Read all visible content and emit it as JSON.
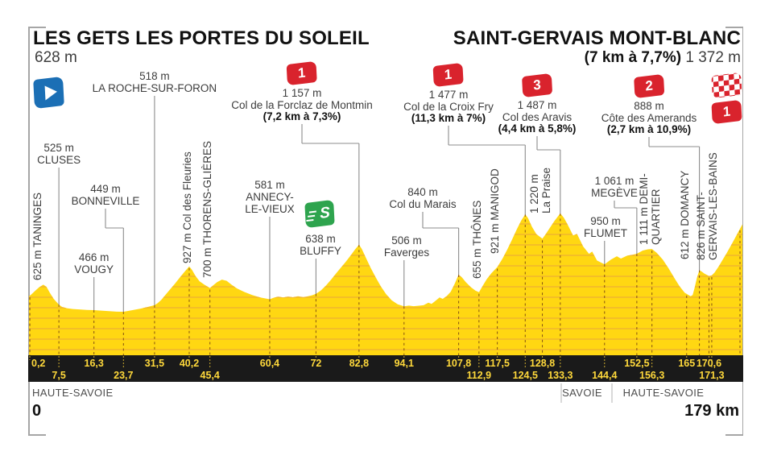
{
  "stage": {
    "start_name": "LES GETS LES PORTES DU SOLEIL",
    "start_altitude": "628 m",
    "finish_name": "SAINT-GERVAIS MONT-BLANC",
    "finish_climb_stats": "(7 km à 7,7%)",
    "finish_altitude": "1 372 m",
    "start_km_label": "0",
    "total_distance_label": "179 km"
  },
  "regions": [
    {
      "label": "HAUTE-SAVOIE",
      "x": 40,
      "align": "left"
    },
    {
      "label": "SAVOIE",
      "x": 723,
      "align": "center"
    },
    {
      "label": "HAUTE-SAVOIE",
      "x": 824,
      "align": "center"
    }
  ],
  "colors": {
    "yellow": "#ffd712",
    "stripe": "#e9a43c",
    "bar_black": "#1a1a1a",
    "km_text": "#ffd93b",
    "badge_red": "#d9232d",
    "sprint_green": "#2ea44e",
    "start_blue": "#1b6fb5",
    "text_dark": "#3d3d3d",
    "line_gray": "#8c8c8c",
    "dash_brown": "#6e3a12",
    "frame_gray": "#a6a6a6"
  },
  "chart_data": {
    "type": "area",
    "title": "LES GETS LES PORTES DU SOLEIL - SAINT-GERVAIS MONT-BLANC",
    "xlabel": "km",
    "x_range": [
      0,
      179
    ],
    "y_range_m": [
      449,
      1487
    ],
    "profile_km_alt": [
      [
        0,
        612
      ],
      [
        0.5,
        628
      ],
      [
        1.5,
        668
      ],
      [
        2.5,
        706
      ],
      [
        3.6,
        735
      ],
      [
        4.4,
        712
      ],
      [
        5.2,
        652
      ],
      [
        6.2,
        585
      ],
      [
        7.5,
        525
      ],
      [
        8.3,
        500
      ],
      [
        9.5,
        486
      ],
      [
        11,
        478
      ],
      [
        13,
        472
      ],
      [
        14.5,
        468
      ],
      [
        16.3,
        466
      ],
      [
        18.5,
        460
      ],
      [
        20.5,
        454
      ],
      [
        22,
        450
      ],
      [
        23.7,
        449
      ],
      [
        25,
        458
      ],
      [
        26.5,
        470
      ],
      [
        28,
        482
      ],
      [
        29.8,
        500
      ],
      [
        31.5,
        518
      ],
      [
        32.3,
        540
      ],
      [
        33.2,
        575
      ],
      [
        34.2,
        625
      ],
      [
        35.4,
        685
      ],
      [
        36.6,
        745
      ],
      [
        37.8,
        808
      ],
      [
        39,
        870
      ],
      [
        40.2,
        927
      ],
      [
        40.9,
        890
      ],
      [
        41.8,
        825
      ],
      [
        42.8,
        770
      ],
      [
        44,
        735
      ],
      [
        45.4,
        700
      ],
      [
        46.2,
        728
      ],
      [
        47.2,
        762
      ],
      [
        48.4,
        788
      ],
      [
        49.6,
        775
      ],
      [
        50.8,
        735
      ],
      [
        52.2,
        695
      ],
      [
        54,
        658
      ],
      [
        56,
        625
      ],
      [
        58,
        600
      ],
      [
        60.4,
        581
      ],
      [
        61.3,
        595
      ],
      [
        62.5,
        608
      ],
      [
        63.8,
        600
      ],
      [
        65,
        610
      ],
      [
        66.2,
        602
      ],
      [
        67.5,
        612
      ],
      [
        68.8,
        603
      ],
      [
        70,
        612
      ],
      [
        71,
        622
      ],
      [
        72,
        638
      ],
      [
        73.2,
        672
      ],
      [
        74.5,
        725
      ],
      [
        75.8,
        788
      ],
      [
        77,
        852
      ],
      [
        78.2,
        912
      ],
      [
        79.4,
        972
      ],
      [
        80.6,
        1038
      ],
      [
        81.8,
        1105
      ],
      [
        82.8,
        1157
      ],
      [
        83.5,
        1112
      ],
      [
        84.5,
        1020
      ],
      [
        85.7,
        915
      ],
      [
        87,
        810
      ],
      [
        88.3,
        715
      ],
      [
        89.6,
        635
      ],
      [
        91,
        570
      ],
      [
        92.5,
        527
      ],
      [
        94.1,
        506
      ],
      [
        95.3,
        514
      ],
      [
        96.5,
        508
      ],
      [
        97.8,
        513
      ],
      [
        99,
        518
      ],
      [
        100.2,
        545
      ],
      [
        101,
        532
      ],
      [
        102,
        565
      ],
      [
        103,
        600
      ],
      [
        103.8,
        585
      ],
      [
        104.8,
        615
      ],
      [
        105.8,
        660
      ],
      [
        106.8,
        745
      ],
      [
        107.8,
        840
      ],
      [
        108.6,
        812
      ],
      [
        109.6,
        762
      ],
      [
        110.8,
        710
      ],
      [
        112,
        672
      ],
      [
        112.9,
        655
      ],
      [
        113.8,
        720
      ],
      [
        114.8,
        790
      ],
      [
        116,
        855
      ],
      [
        117.5,
        921
      ],
      [
        118.8,
        1010
      ],
      [
        120,
        1105
      ],
      [
        121.2,
        1210
      ],
      [
        122.4,
        1320
      ],
      [
        123.5,
        1412
      ],
      [
        124.5,
        1477
      ],
      [
        125.2,
        1438
      ],
      [
        126.2,
        1345
      ],
      [
        127.3,
        1268
      ],
      [
        128.8,
        1220
      ],
      [
        129.6,
        1265
      ],
      [
        130.6,
        1330
      ],
      [
        131.8,
        1405
      ],
      [
        132.7,
        1455
      ],
      [
        133.3,
        1487
      ],
      [
        134.2,
        1440
      ],
      [
        135,
        1380
      ],
      [
        136.5,
        1255
      ],
      [
        137.5,
        1270
      ],
      [
        139,
        1140
      ],
      [
        140.5,
        1060
      ],
      [
        141.3,
        1085
      ],
      [
        142.5,
        990
      ],
      [
        144.4,
        950
      ],
      [
        146,
        1000
      ],
      [
        147.5,
        1035
      ],
      [
        148.5,
        1010
      ],
      [
        150,
        1040
      ],
      [
        151.5,
        1052
      ],
      [
        152.5,
        1061
      ],
      [
        154,
        1095
      ],
      [
        155.3,
        1108
      ],
      [
        156.3,
        1111
      ],
      [
        157.5,
        1070
      ],
      [
        159,
        1000
      ],
      [
        160.5,
        905
      ],
      [
        162,
        800
      ],
      [
        163.2,
        720
      ],
      [
        164.5,
        650
      ],
      [
        166,
        612
      ],
      [
        166.5,
        625
      ],
      [
        167,
        700
      ],
      [
        167.6,
        810
      ],
      [
        168.2,
        888
      ],
      [
        168.8,
        872
      ],
      [
        169.5,
        850
      ],
      [
        170.6,
        826
      ],
      [
        171.3,
        832
      ],
      [
        172,
        862
      ],
      [
        173,
        925
      ],
      [
        174,
        995
      ],
      [
        175,
        1065
      ],
      [
        176,
        1140
      ],
      [
        177,
        1215
      ],
      [
        178,
        1295
      ],
      [
        179,
        1372
      ]
    ],
    "waypoints": [
      {
        "km": 0.2,
        "km_label": "0,2",
        "altitude_m": 625,
        "alt_label": "625 m",
        "name": "TANINGES",
        "label_lines": [
          "625 m TANINGES"
        ],
        "label_orient": "v",
        "axis_row": 1
      },
      {
        "km": 7.5,
        "km_label": "7,5",
        "altitude_m": 525,
        "alt_label": "525 m",
        "name": "CLUSES",
        "label_lines": [
          "525 m",
          "CLUSES"
        ],
        "label_orient": "h",
        "axis_row": 2
      },
      {
        "km": 16.3,
        "km_label": "16,3",
        "altitude_m": 466,
        "alt_label": "466 m",
        "name": "VOUGY",
        "label_lines": [
          "466 m",
          "VOUGY"
        ],
        "label_orient": "h",
        "axis_row": 1
      },
      {
        "km": 23.7,
        "km_label": "23,7",
        "altitude_m": 449,
        "alt_label": "449 m",
        "name": "BONNEVILLE",
        "label_lines": [
          "449 m",
          "BONNEVILLE"
        ],
        "label_orient": "h",
        "axis_row": 2
      },
      {
        "km": 31.5,
        "km_label": "31,5",
        "altitude_m": 518,
        "alt_label": "518 m",
        "name": "LA ROCHE-SUR-FORON",
        "label_lines": [
          "518 m",
          "LA ROCHE-SUR-FORON"
        ],
        "label_orient": "h",
        "axis_row": 1
      },
      {
        "km": 40.2,
        "km_label": "40,2",
        "altitude_m": 927,
        "alt_label": "927 m",
        "name": "Col des Fleuries",
        "label_lines": [
          "927 m Col des Fleuries"
        ],
        "label_orient": "v",
        "axis_row": 1
      },
      {
        "km": 45.4,
        "km_label": "45,4",
        "altitude_m": 700,
        "alt_label": "700 m",
        "name": "THORENS-GLIÈRES",
        "label_lines": [
          "700 m THORENS-GLIÈRES"
        ],
        "label_orient": "v",
        "axis_row": 2
      },
      {
        "km": 60.4,
        "km_label": "60,4",
        "altitude_m": 581,
        "alt_label": "581 m",
        "name": "ANNECY-LE-VIEUX",
        "label_lines": [
          "581 m",
          "ANNECY-",
          "LE-VIEUX"
        ],
        "label_orient": "h",
        "axis_row": 1
      },
      {
        "km": 72,
        "km_label": "72",
        "altitude_m": 638,
        "alt_label": "638 m",
        "name": "BLUFFY",
        "label_lines": [
          "638 m",
          "BLUFFY"
        ],
        "label_orient": "h",
        "axis_row": 1,
        "sprint": true
      },
      {
        "km": 82.8,
        "km_label": "82,8",
        "altitude_m": 1157,
        "alt_label": "1 157 m",
        "name": "Col de la Forclaz de Montmin",
        "label_lines": [],
        "label_orient": "climb",
        "axis_row": 1,
        "climb_index": 0
      },
      {
        "km": 94.1,
        "km_label": "94,1",
        "altitude_m": 506,
        "alt_label": "506 m",
        "name": "Faverges",
        "label_lines": [
          "506 m",
          "Faverges"
        ],
        "label_orient": "h",
        "axis_row": 1
      },
      {
        "km": 107.8,
        "km_label": "107,8",
        "altitude_m": 840,
        "alt_label": "840 m",
        "name": "Col du Marais",
        "label_lines": [
          "840 m",
          "Col du Marais"
        ],
        "label_orient": "h",
        "axis_row": 1
      },
      {
        "km": 112.9,
        "km_label": "112,9",
        "altitude_m": 655,
        "alt_label": "655 m",
        "name": "THÔNES",
        "label_lines": [
          "655 m THÔNES"
        ],
        "label_orient": "v",
        "axis_row": 2
      },
      {
        "km": 117.5,
        "km_label": "117,5",
        "altitude_m": 921,
        "alt_label": "921 m",
        "name": "MANIGOD",
        "label_lines": [
          "921 m MANIGOD"
        ],
        "label_orient": "v",
        "axis_row": 1
      },
      {
        "km": 124.5,
        "km_label": "124,5",
        "altitude_m": 1477,
        "alt_label": "1 477 m",
        "name": "Col de la Croix Fry",
        "label_lines": [],
        "label_orient": "climb",
        "axis_row": 2,
        "climb_index": 1
      },
      {
        "km": 128.8,
        "km_label": "128,8",
        "altitude_m": 1220,
        "alt_label": "1 220 m",
        "name": "La Praise",
        "label_lines": [
          "1 220 m",
          "La Praise"
        ],
        "label_orient": "v",
        "axis_row": 1
      },
      {
        "km": 133.3,
        "km_label": "133,3",
        "altitude_m": 1487,
        "alt_label": "1 487 m",
        "name": "Col des Aravis",
        "label_lines": [],
        "label_orient": "climb",
        "axis_row": 2,
        "climb_index": 2
      },
      {
        "km": 144.4,
        "km_label": "144,4",
        "altitude_m": 950,
        "alt_label": "950 m",
        "name": "FLUMET",
        "label_lines": [
          "950 m",
          "FLUMET"
        ],
        "label_orient": "h",
        "axis_row": 2
      },
      {
        "km": 152.5,
        "km_label": "152,5",
        "altitude_m": 1061,
        "alt_label": "1 061 m",
        "name": "MEGÈVE",
        "label_lines": [
          "1 061 m",
          "MEGÈVE"
        ],
        "label_orient": "h",
        "axis_row": 1
      },
      {
        "km": 156.3,
        "km_label": "156,3",
        "altitude_m": 1111,
        "alt_label": "1 111 m",
        "name": "DEMI-QUARTIER",
        "label_lines": [
          "1 111 m DEMI-",
          "QUARTIER"
        ],
        "label_orient": "v",
        "axis_row": 2
      },
      {
        "km": 165,
        "km_label": "165",
        "altitude_m": 612,
        "alt_label": "612 m",
        "name": "DOMANCY",
        "label_lines": [
          "612 m DOMANCY"
        ],
        "label_orient": "v",
        "axis_row": 1
      },
      {
        "km": 170.6,
        "km_label": "170,6",
        "altitude_m": 826,
        "alt_label": "826 m",
        "name": "SAINT-GERVAIS-LES-BAINS",
        "label_lines": [
          "826 m SAINT-",
          "GERVAIS-LES-BAINS"
        ],
        "label_orient": "v",
        "axis_row": 1
      },
      {
        "km": 171.3,
        "km_label": "171,3",
        "name": "",
        "label_lines": [],
        "label_orient": "none",
        "axis_row": 2
      }
    ],
    "climbs": [
      {
        "category": "1",
        "alt_label": "1 157 m",
        "name": "Col de la Forclaz de Montmin",
        "stats": "(7,2 km à 7,3%)",
        "summit_km": 82.8
      },
      {
        "category": "1",
        "alt_label": "1 477 m",
        "name": "Col de la Croix Fry",
        "stats": "(11,3 km à 7%)",
        "summit_km": 124.5
      },
      {
        "category": "3",
        "alt_label": "1 487 m",
        "name": "Col des Aravis",
        "stats": "(4,4 km à 5,8%)",
        "summit_km": 133.3
      },
      {
        "category": "2",
        "alt_label": "888 m",
        "name": "Côte des Amerands",
        "stats": "(2,7 km à 10,9%)",
        "summit_km": 168.2
      }
    ],
    "intermediate_sprint": {
      "location": "BLUFFY",
      "km": 72,
      "symbol": "S"
    },
    "finish_climb_category": "1",
    "legend_position": "none",
    "grid": "horizontal-stripes"
  }
}
